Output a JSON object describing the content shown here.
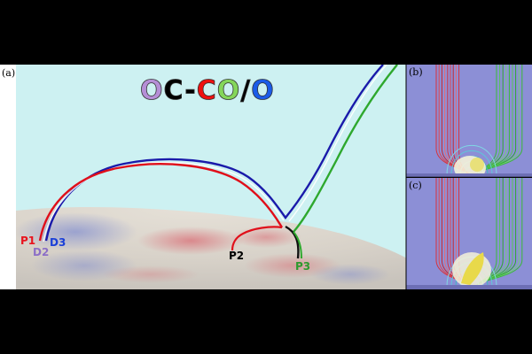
{
  "panels": {
    "a_label": "(a)",
    "b_label": "(b)",
    "c_label": "(c)"
  },
  "title": {
    "parts": [
      {
        "text": "O",
        "color": "#b58ed6"
      },
      {
        "text": "C",
        "color": "#000000"
      },
      {
        "text": "-",
        "color": "#000000"
      },
      {
        "text": "C",
        "color": "#ee1111"
      },
      {
        "text": "O",
        "color": "#84d65a"
      },
      {
        "text": "/",
        "color": "#000000"
      },
      {
        "text": "O",
        "color": "#1b5be8"
      }
    ]
  },
  "points": {
    "p1": {
      "text": "P1",
      "color": "#e8141e"
    },
    "d3": {
      "text": "D3",
      "color": "#1a3fd8"
    },
    "d2": {
      "text": "D2",
      "color": "#8c6fc7"
    },
    "p2": {
      "text": "P2",
      "color": "#000000"
    },
    "p3": {
      "text": "P3",
      "color": "#2e9a2e"
    }
  },
  "colors": {
    "background_sky": "#cdf1f2",
    "surface_light": "#d6d1c9",
    "line_red": "#e00f1a",
    "line_blue": "#1a1aaa",
    "line_green": "#2ea82e",
    "line_black": "#111111",
    "inset_bg": "#8c8fd6"
  }
}
